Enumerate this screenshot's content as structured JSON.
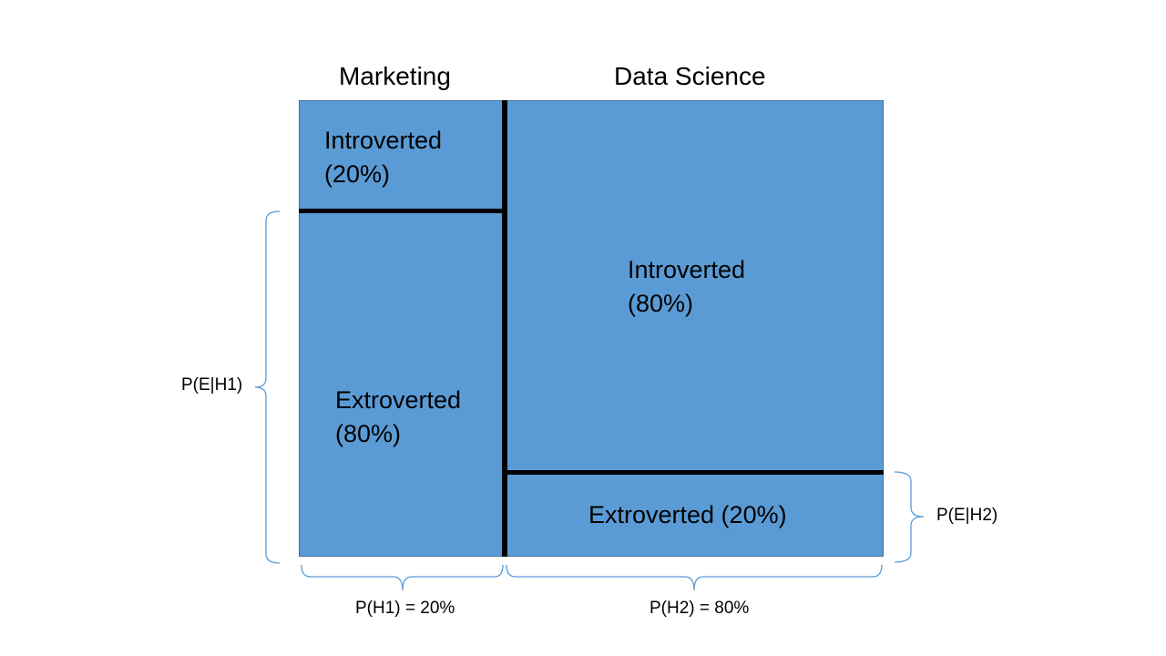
{
  "columns": {
    "marketing": "Marketing",
    "data_science": "Data Science"
  },
  "cells": {
    "marketing_introverted": {
      "label": "Introverted",
      "pct": "(20%)"
    },
    "marketing_extroverted": {
      "label": "Extroverted",
      "pct": "(80%)"
    },
    "ds_introverted": {
      "label": "Introverted",
      "pct": "(80%)"
    },
    "ds_extroverted": {
      "label": "Extroverted (20%)"
    }
  },
  "braces": {
    "p_e_h1": "P(E|H1)",
    "p_e_h2": "P(E|H2)",
    "p_h1": "P(H1) = 20%",
    "p_h2": "P(H2) = 80%"
  },
  "colors": {
    "cell_fill": "#5b9bd5",
    "divider": "#000000",
    "brace": "#5b9bd5"
  }
}
